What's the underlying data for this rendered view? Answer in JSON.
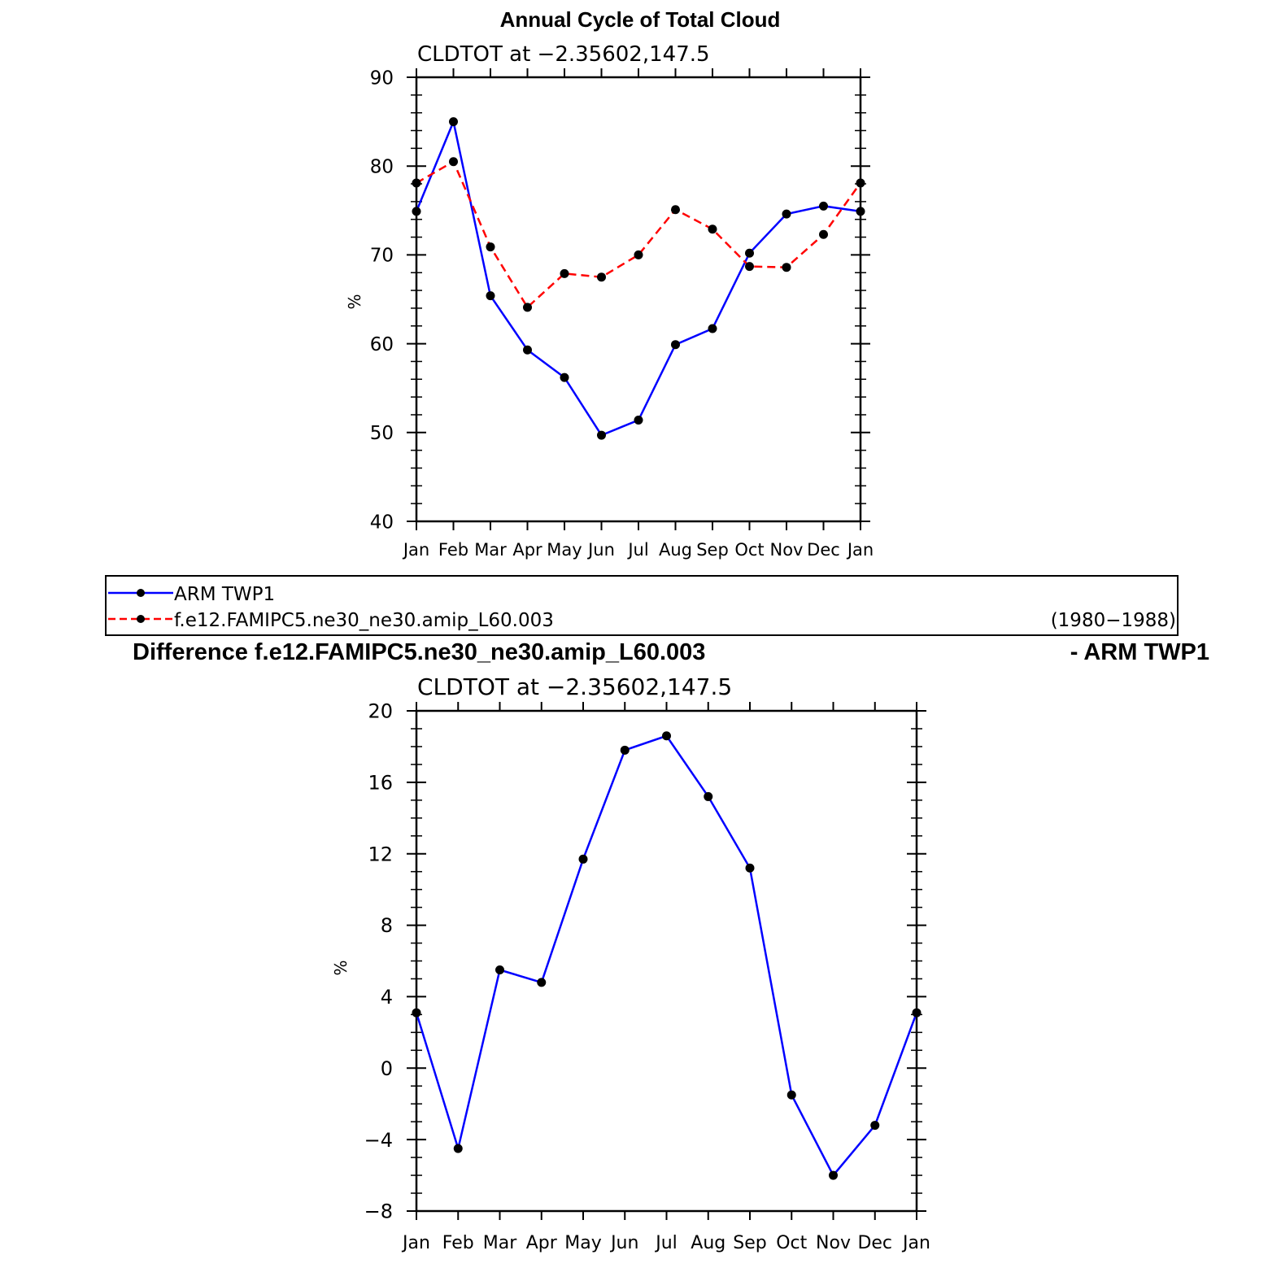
{
  "page": {
    "main_title": "Annual Cycle of Total Cloud",
    "diff_title_left": "Difference f.e12.FAMIPC5.ne30_ne30.amip_L60.003",
    "diff_title_right": "- ARM TWP1"
  },
  "legend": {
    "entries": [
      {
        "label": "ARM TWP1",
        "color": "#0000ff",
        "dash": "solid"
      },
      {
        "label": "f.e12.FAMIPC5.ne30_ne30.amip_L60.003",
        "color": "#ff0000",
        "dash": "dashed"
      }
    ],
    "period": "(1980−1988)"
  },
  "chart_data": [
    {
      "type": "line",
      "title": "CLDTOT at −2.35602,147.5",
      "xlabel": "",
      "ylabel": "%",
      "categories": [
        "Jan",
        "Feb",
        "Mar",
        "Apr",
        "May",
        "Jun",
        "Jul",
        "Aug",
        "Sep",
        "Oct",
        "Nov",
        "Dec",
        "Jan"
      ],
      "ylim": [
        40,
        90
      ],
      "yticks": [
        40,
        50,
        60,
        70,
        80,
        90
      ],
      "ytick_labels": [
        "40",
        "50",
        "60",
        "70",
        "80",
        "90"
      ],
      "grid": false,
      "series": [
        {
          "name": "ARM TWP1",
          "color": "#0000ff",
          "dash": "solid",
          "values": [
            74.9,
            85.0,
            65.4,
            59.3,
            56.2,
            49.7,
            51.4,
            59.9,
            61.7,
            70.2,
            74.6,
            75.5,
            74.9
          ]
        },
        {
          "name": "f.e12.FAMIPC5.ne30_ne30.amip_L60.003",
          "color": "#ff0000",
          "dash": "dashed",
          "values": [
            78.1,
            80.5,
            70.9,
            64.1,
            67.9,
            67.5,
            70.0,
            75.1,
            72.9,
            68.7,
            68.6,
            72.3,
            78.1
          ]
        }
      ]
    },
    {
      "type": "line",
      "title": "CLDTOT at −2.35602,147.5",
      "xlabel": "",
      "ylabel": "%",
      "categories": [
        "Jan",
        "Feb",
        "Mar",
        "Apr",
        "May",
        "Jun",
        "Jul",
        "Aug",
        "Sep",
        "Oct",
        "Nov",
        "Dec",
        "Jan"
      ],
      "ylim": [
        -8,
        20
      ],
      "yticks": [
        -8,
        -4,
        0,
        4,
        8,
        12,
        16,
        20
      ],
      "ytick_labels": [
        "−8",
        "−4",
        "0",
        "4",
        "8",
        "12",
        "16",
        "20"
      ],
      "grid": false,
      "series": [
        {
          "color": "#0000ff",
          "dash": "solid",
          "values": [
            3.1,
            -4.5,
            5.5,
            4.8,
            11.7,
            17.8,
            18.6,
            15.2,
            11.2,
            -1.5,
            -6.0,
            -3.2,
            3.1
          ]
        }
      ]
    }
  ]
}
